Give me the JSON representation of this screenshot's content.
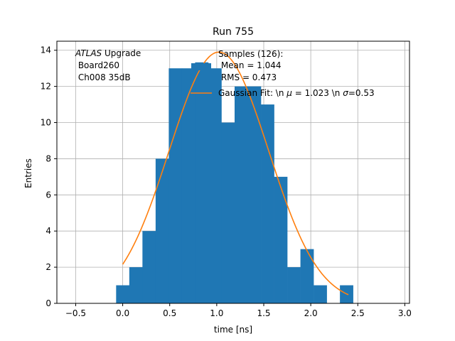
{
  "chart_data": {
    "type": "bar",
    "title": "Run 755",
    "xlabel": "time [ns]",
    "ylabel": "Entries",
    "xlim": [
      -0.7,
      3.05
    ],
    "ylim": [
      0,
      14.5
    ],
    "xticks": [
      -0.5,
      0.0,
      0.5,
      1.0,
      1.5,
      2.0,
      2.5,
      3.0
    ],
    "xtick_labels": [
      "−0.5",
      "0.0",
      "0.5",
      "1.0",
      "1.5",
      "2.0",
      "2.5",
      "3.0"
    ],
    "yticks": [
      0,
      2,
      4,
      6,
      8,
      10,
      12,
      14
    ],
    "ytick_labels": [
      "0",
      "2",
      "4",
      "6",
      "8",
      "10",
      "12",
      "14"
    ],
    "grid": true,
    "histogram": {
      "name": "Samples (126):",
      "color": "#1f77b4",
      "bins": [
        {
          "x0": -0.07,
          "x1": 0.07,
          "count": 1
        },
        {
          "x0": 0.07,
          "x1": 0.21,
          "count": 2
        },
        {
          "x0": 0.21,
          "x1": 0.35,
          "count": 4
        },
        {
          "x0": 0.35,
          "x1": 0.49,
          "count": 8
        },
        {
          "x0": 0.49,
          "x1": 0.63,
          "count": 13
        },
        {
          "x0": 0.63,
          "x1": 0.77,
          "count": 13
        },
        {
          "x0": 0.77,
          "x1": 0.91,
          "count": 13.33
        },
        {
          "x0": 0.91,
          "x1": 1.05,
          "count": 13
        },
        {
          "x0": 1.05,
          "x1": 1.19,
          "count": 10
        },
        {
          "x0": 1.19,
          "x1": 1.33,
          "count": 12
        },
        {
          "x0": 1.33,
          "x1": 1.47,
          "count": 12
        },
        {
          "x0": 1.47,
          "x1": 1.61,
          "count": 11
        },
        {
          "x0": 1.61,
          "x1": 1.75,
          "count": 7
        },
        {
          "x0": 1.75,
          "x1": 1.89,
          "count": 2
        },
        {
          "x0": 1.89,
          "x1": 2.03,
          "count": 3
        },
        {
          "x0": 2.03,
          "x1": 2.17,
          "count": 1
        },
        {
          "x0": 2.17,
          "x1": 2.31,
          "count": 0
        },
        {
          "x0": 2.31,
          "x1": 2.45,
          "count": 1
        }
      ]
    },
    "fit": {
      "name": "Gaussian Fit: \\n $\\mu$ = 1.023 \\n $\\sigma$=0.53",
      "color": "#ff7f0e",
      "mu": 1.023,
      "sigma": 0.53,
      "amplitude": 13.9,
      "x_range": [
        0.0,
        2.4
      ]
    },
    "annotation": {
      "line1_italic": "ATLAS",
      "line1_rest": " Upgrade",
      "line2": " Board260",
      "line3": " Ch008 35dB",
      "position": "top-left"
    },
    "legend": {
      "position": "top-right",
      "samples_title": "Samples (126):",
      "samples_mean": " Mean = 1.044",
      "samples_rms": " RMS = 0.473",
      "fit_prefix": "Gaussian Fit: \\n ",
      "fit_mu_symbol": "μ",
      "fit_mu_value": " = 1.023 \\n ",
      "fit_sigma_symbol": "σ",
      "fit_sigma_value": "=0.53"
    }
  }
}
